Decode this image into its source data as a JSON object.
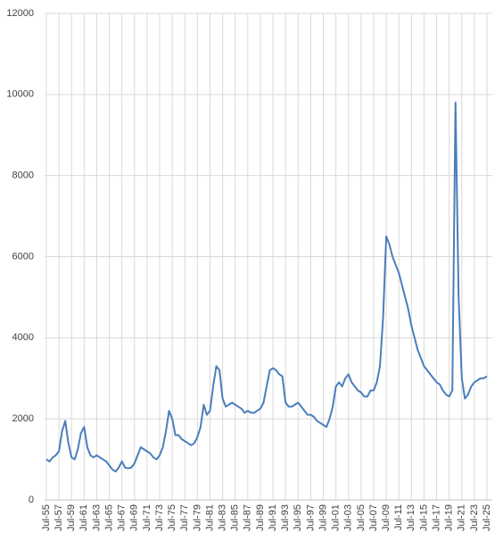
{
  "chart_data": {
    "type": "line",
    "categories": [
      "Jul-55",
      null,
      null,
      null,
      "Jul-57",
      null,
      null,
      null,
      "Jul-59",
      null,
      null,
      null,
      "Jul-61",
      null,
      null,
      null,
      "Jul-63",
      null,
      null,
      null,
      "Jul-65",
      null,
      null,
      null,
      "Jul-67",
      null,
      null,
      null,
      "Jul-69",
      null,
      null,
      null,
      "Jul-71",
      null,
      null,
      null,
      "Jul-73",
      null,
      null,
      null,
      "Jul-75",
      null,
      null,
      null,
      "Jul-77",
      null,
      null,
      null,
      "Jul-79",
      null,
      null,
      null,
      "Jul-81",
      null,
      null,
      null,
      "Jul-83",
      null,
      null,
      null,
      "Jul-85",
      null,
      null,
      null,
      "Jul-87",
      null,
      null,
      null,
      "Jul-89",
      null,
      null,
      null,
      "Jul-91",
      null,
      null,
      null,
      "Jul-93",
      null,
      null,
      null,
      "Jul-95",
      null,
      null,
      null,
      "Jul-97",
      null,
      null,
      null,
      "Jul-99",
      null,
      null,
      null,
      "Jul-01",
      null,
      null,
      null,
      "Jul-03",
      null,
      null,
      null,
      "Jul-05",
      null,
      null,
      null,
      "Jul-07",
      null,
      null,
      null,
      "Jul-09",
      null,
      null,
      null,
      "Jul-11",
      null,
      null,
      null,
      "Jul-13",
      null,
      null,
      null,
      "Jul-15",
      null,
      null,
      null,
      "Jul-17",
      null,
      null,
      null,
      "Jul-19",
      null,
      null,
      null,
      "Jul-21",
      null,
      null,
      null,
      "Jul-23",
      null,
      null,
      null,
      "Jul-25"
    ],
    "values": [
      1000,
      950,
      1050,
      1100,
      1200,
      1700,
      1950,
      1400,
      1050,
      1000,
      1250,
      1650,
      1800,
      1300,
      1100,
      1050,
      1100,
      1050,
      1000,
      950,
      850,
      750,
      700,
      800,
      950,
      800,
      780,
      800,
      900,
      1100,
      1300,
      1250,
      1200,
      1150,
      1050,
      1000,
      1100,
      1300,
      1700,
      2200,
      2000,
      1600,
      1600,
      1500,
      1450,
      1400,
      1350,
      1400,
      1550,
      1800,
      2350,
      2100,
      2200,
      2800,
      3300,
      3200,
      2500,
      2300,
      2350,
      2400,
      2350,
      2300,
      2250,
      2150,
      2200,
      2150,
      2150,
      2200,
      2250,
      2400,
      2800,
      3200,
      3250,
      3200,
      3100,
      3050,
      2400,
      2300,
      2300,
      2350,
      2400,
      2300,
      2200,
      2100,
      2100,
      2050,
      1950,
      1900,
      1850,
      1800,
      2000,
      2300,
      2800,
      2900,
      2800,
      3000,
      3100,
      2900,
      2800,
      2700,
      2650,
      2550,
      2550,
      2700,
      2700,
      2900,
      3300,
      4500,
      6500,
      6300,
      6000,
      5800,
      5600,
      5300,
      5000,
      4700,
      4300,
      4000,
      3700,
      3500,
      3300,
      3200,
      3100,
      3000,
      2900,
      2850,
      2700,
      2600,
      2550,
      2700,
      9800,
      5000,
      3000,
      2500,
      2600,
      2800,
      2900,
      2950,
      3000,
      3000,
      3050
    ],
    "color": "#4a7ebb",
    "ylim": [
      0,
      12000
    ],
    "yticks": [
      0,
      2000,
      4000,
      6000,
      8000,
      10000,
      12000
    ],
    "grid": true
  }
}
